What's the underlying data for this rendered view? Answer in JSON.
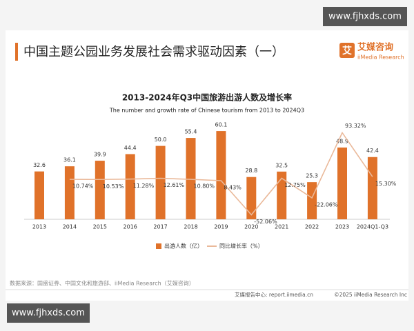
{
  "header": {
    "title": "中国主题公园业务发展社会需求驱动因素（一）",
    "logo_mark": "艾",
    "logo_cn": "艾媒咨询",
    "logo_en": "iiMedia Research"
  },
  "watermark": "www.fjhxds.com",
  "chart_data": {
    "type": "bar-line",
    "title": "2013-2024年Q3中国旅游出游人数及增长率",
    "subtitle": "The number and growth rate of Chinese tourism from 2013 to 2024Q3",
    "categories": [
      "2013",
      "2014",
      "2015",
      "2016",
      "2017",
      "2018",
      "2019",
      "2020",
      "2021",
      "2022",
      "2023",
      "2024Q1-Q3"
    ],
    "series": [
      {
        "name": "出游人数（亿）",
        "color": "#e0722a",
        "values": [
          32.6,
          36.1,
          39.9,
          44.4,
          50.0,
          55.4,
          60.1,
          28.8,
          32.5,
          25.3,
          48.9,
          42.4
        ],
        "value_labels": [
          "32.6",
          "36.1",
          "39.9",
          "44.4",
          "50.0",
          "55.4",
          "60.1",
          "28.8",
          "32.5",
          "25.3",
          "48.9",
          "42.4"
        ]
      },
      {
        "name": "同比增长率（%）",
        "color": "#eab99a",
        "axis": "y2",
        "values": [
          null,
          10.74,
          10.53,
          11.28,
          12.61,
          10.8,
          8.43,
          -52.06,
          12.75,
          -22.06,
          93.32,
          15.3
        ],
        "value_labels": [
          null,
          "10.74%",
          "10.53%",
          "11.28%",
          "12.61%",
          "10.80%",
          "8.43%",
          "-52.06%",
          "12.75%",
          "-22.06%",
          "93.32%",
          "15.30%"
        ]
      }
    ],
    "ylim": [
      0,
      70
    ],
    "y2lim": [
      -60,
      122
    ]
  },
  "source": "数据来源：国盛证券、中国文化和旅游部、iiMedia Research（艾媒咨询）",
  "footer": {
    "report": "艾媒报告中心: report.iimedia.cn",
    "copyright": "©2025  iiMedia Research  Inc"
  }
}
